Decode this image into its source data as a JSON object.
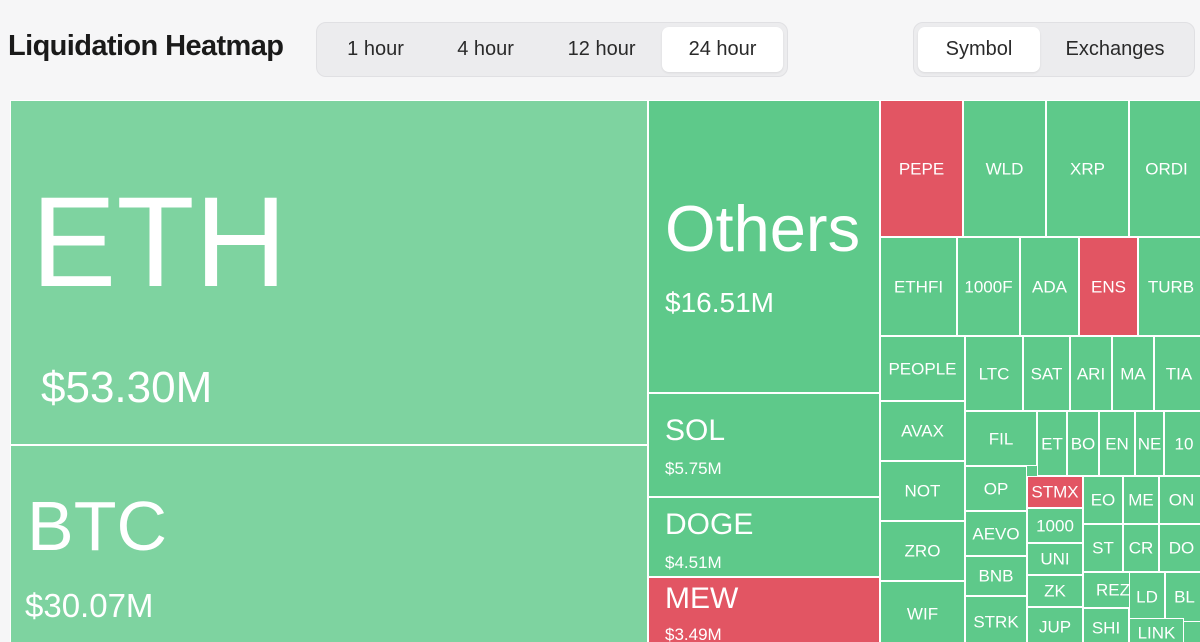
{
  "header": {
    "title": "Liquidation Heatmap"
  },
  "timeframes": [
    "1 hour",
    "4 hour",
    "12 hour",
    "24 hour"
  ],
  "active_timeframe": "24 hour",
  "views": [
    "Symbol",
    "Exchanges"
  ],
  "active_view": "Symbol",
  "colors": {
    "light_green": "#7ed3a0",
    "green": "#5ec98a",
    "red": "#e25563"
  },
  "treemap": [
    {
      "symbol": "ETH",
      "value": "$53.30M",
      "color": "#7ed3a0"
    },
    {
      "symbol": "BTC",
      "value": "$30.07M",
      "color": "#7ed3a0"
    },
    {
      "symbol": "Others",
      "value": "$16.51M",
      "color": "#5ec98a"
    },
    {
      "symbol": "SOL",
      "value": "$5.75M",
      "color": "#5ec98a"
    },
    {
      "symbol": "DOGE",
      "value": "$4.51M",
      "color": "#5ec98a"
    },
    {
      "symbol": "MEW",
      "value": "$3.49M",
      "color": "#e25563"
    },
    {
      "symbol": "PEPE",
      "color": "#e25563"
    },
    {
      "symbol": "WLD",
      "color": "#5ec98a"
    },
    {
      "symbol": "XRP",
      "color": "#5ec98a"
    },
    {
      "symbol": "ORDI",
      "color": "#5ec98a"
    },
    {
      "symbol": "ETHFI",
      "color": "#5ec98a"
    },
    {
      "symbol": "1000F",
      "color": "#5ec98a"
    },
    {
      "symbol": "ADA",
      "color": "#5ec98a"
    },
    {
      "symbol": "ENS",
      "color": "#e25563"
    },
    {
      "symbol": "TURB",
      "color": "#5ec98a"
    },
    {
      "symbol": "PEOPLE",
      "color": "#5ec98a"
    },
    {
      "symbol": "LTC",
      "color": "#5ec98a"
    },
    {
      "symbol": "SAT",
      "color": "#5ec98a"
    },
    {
      "symbol": "ARI",
      "color": "#5ec98a"
    },
    {
      "symbol": "MA",
      "color": "#5ec98a"
    },
    {
      "symbol": "TIA",
      "color": "#5ec98a"
    },
    {
      "symbol": "AVAX",
      "color": "#5ec98a"
    },
    {
      "symbol": "FIL",
      "color": "#5ec98a"
    },
    {
      "symbol": "ET",
      "color": "#5ec98a"
    },
    {
      "symbol": "BO",
      "color": "#5ec98a"
    },
    {
      "symbol": "EN",
      "color": "#5ec98a"
    },
    {
      "symbol": "NE",
      "color": "#5ec98a"
    },
    {
      "symbol": "10",
      "color": "#5ec98a"
    },
    {
      "symbol": "NOT",
      "color": "#5ec98a"
    },
    {
      "symbol": "OP",
      "color": "#5ec98a"
    },
    {
      "symbol": "STMX",
      "color": "#e25563"
    },
    {
      "symbol": "EO",
      "color": "#5ec98a"
    },
    {
      "symbol": "ME",
      "color": "#5ec98a"
    },
    {
      "symbol": "ON",
      "color": "#5ec98a"
    },
    {
      "symbol": "AEVO",
      "color": "#5ec98a"
    },
    {
      "symbol": "1000",
      "color": "#5ec98a"
    },
    {
      "symbol": "ST",
      "color": "#5ec98a"
    },
    {
      "symbol": "CR",
      "color": "#5ec98a"
    },
    {
      "symbol": "DO",
      "color": "#5ec98a"
    },
    {
      "symbol": "ZRO",
      "color": "#5ec98a"
    },
    {
      "symbol": "UNI",
      "color": "#5ec98a"
    },
    {
      "symbol": "BNB",
      "color": "#5ec98a"
    },
    {
      "symbol": "ZK",
      "color": "#5ec98a"
    },
    {
      "symbol": "REZ",
      "color": "#5ec98a"
    },
    {
      "symbol": "LD",
      "color": "#5ec98a"
    },
    {
      "symbol": "BL",
      "color": "#5ec98a"
    },
    {
      "symbol": "WIF",
      "color": "#5ec98a"
    },
    {
      "symbol": "STRK",
      "color": "#5ec98a"
    },
    {
      "symbol": "JUP",
      "color": "#5ec98a"
    },
    {
      "symbol": "SHI",
      "color": "#5ec98a"
    },
    {
      "symbol": "LINK",
      "color": "#5ec98a"
    }
  ]
}
